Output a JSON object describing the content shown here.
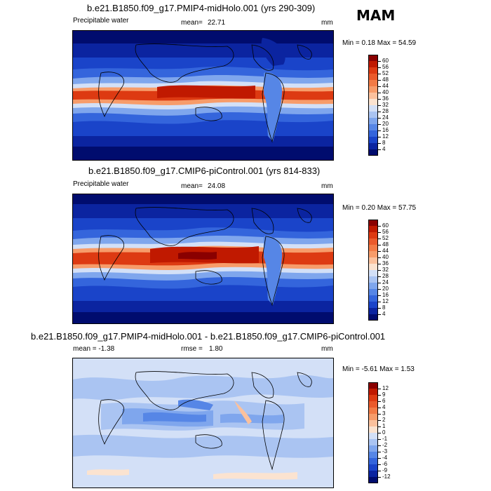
{
  "season": "MAM",
  "panels": [
    {
      "title": "b.e21.B1850.f09_g17.PMIP4-midHolo.001 (yrs 290-309)",
      "left_label": "Precipitable water",
      "mean_label": "mean=",
      "mean_value": "22.71",
      "units": "mm",
      "minmax": "Min =   0.18 Max =  54.59",
      "colorbar_labels": [
        "60",
        "56",
        "52",
        "48",
        "44",
        "40",
        "36",
        "32",
        "28",
        "24",
        "20",
        "16",
        "12",
        "8",
        "4"
      ],
      "colors": [
        "#8a0000",
        "#c01900",
        "#dd3a12",
        "#ea5a2b",
        "#f27b46",
        "#f79c6a",
        "#fbc19d",
        "#fbe3d0",
        "#d3e0f7",
        "#aac4f2",
        "#7fa6ed",
        "#5686e6",
        "#3465dc",
        "#1a44c9",
        "#0b24a0",
        "#000c6e"
      ]
    },
    {
      "title": "b.e21.B1850.f09_g17.CMIP6-piControl.001 (yrs 814-833)",
      "left_label": "Precipitable water",
      "mean_label": "mean=",
      "mean_value": "24.08",
      "units": "mm",
      "minmax": "Min =   0.20 Max =  57.75",
      "colorbar_labels": [
        "60",
        "56",
        "52",
        "48",
        "44",
        "40",
        "36",
        "32",
        "28",
        "24",
        "20",
        "16",
        "12",
        "8",
        "4"
      ],
      "colors": [
        "#8a0000",
        "#c01900",
        "#dd3a12",
        "#ea5a2b",
        "#f27b46",
        "#f79c6a",
        "#fbc19d",
        "#fbe3d0",
        "#d3e0f7",
        "#aac4f2",
        "#7fa6ed",
        "#5686e6",
        "#3465dc",
        "#1a44c9",
        "#0b24a0",
        "#000c6e"
      ]
    },
    {
      "title": "b.e21.B1850.f09_g17.PMIP4-midHolo.001 - b.e21.B1850.f09_g17.CMIP6-piControl.001",
      "left_label": "mean =   -1.38",
      "mean_label": "rmse =",
      "mean_value": "1.80",
      "units": "mm",
      "minmax": "Min =  -5.61 Max =   1.53",
      "colorbar_labels": [
        "12",
        "9",
        "6",
        "4",
        "3",
        "2",
        "1",
        "0",
        "-1",
        "-2",
        "-3",
        "-4",
        "-6",
        "-9",
        "-12"
      ],
      "colors": [
        "#8a0000",
        "#c01900",
        "#dd3a12",
        "#ea5a2b",
        "#f27b46",
        "#f79c6a",
        "#fbc19d",
        "#fbe3d0",
        "#d3e0f7",
        "#aac4f2",
        "#7fa6ed",
        "#5686e6",
        "#3465dc",
        "#1a44c9",
        "#0b24a0",
        "#000c6e"
      ]
    }
  ]
}
